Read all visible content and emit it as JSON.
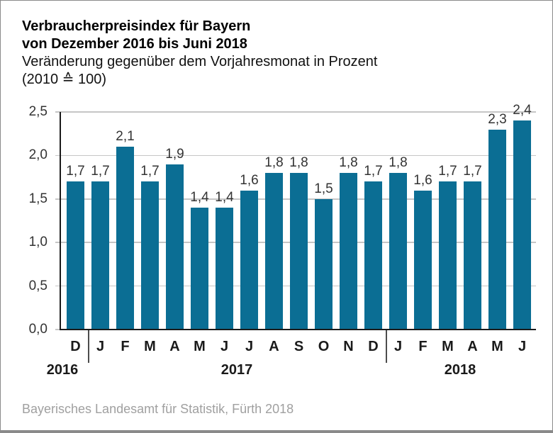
{
  "header": {
    "title_line1": "Verbraucherpreisindex für Bayern",
    "title_line2": "von Dezember 2016 bis Juni 2018",
    "subtitle_line1": "Veränderung gegenüber dem Vorjahresmonat in Prozent",
    "subtitle_line2": "(2010 ≙ 100)"
  },
  "chart_data": {
    "type": "bar",
    "title": "Verbraucherpreisindex für Bayern von Dezember 2016 bis Juni 2018",
    "subtitle": "Veränderung gegenüber dem Vorjahresmonat in Prozent (2010 ≙ 100)",
    "categories": [
      "D",
      "J",
      "F",
      "M",
      "A",
      "M",
      "J",
      "J",
      "A",
      "S",
      "O",
      "N",
      "D",
      "J",
      "F",
      "M",
      "A",
      "M",
      "J"
    ],
    "values": [
      1.7,
      1.7,
      2.1,
      1.7,
      1.9,
      1.4,
      1.4,
      1.6,
      1.8,
      1.8,
      1.5,
      1.8,
      1.7,
      1.8,
      1.6,
      1.7,
      1.7,
      2.3,
      2.4
    ],
    "value_labels": [
      "1,7",
      "1,7",
      "2,1",
      "1,7",
      "1,9",
      "1,4",
      "1,4",
      "1,6",
      "1,8",
      "1,8",
      "1,5",
      "1,8",
      "1,7",
      "1,8",
      "1,6",
      "1,7",
      "1,7",
      "2,3",
      "2,4"
    ],
    "years": [
      {
        "label": "2016",
        "from": 0,
        "to": 0
      },
      {
        "label": "2017",
        "from": 1,
        "to": 12
      },
      {
        "label": "2018",
        "from": 13,
        "to": 18
      }
    ],
    "y_ticks": [
      "0,0",
      "0,5",
      "1,0",
      "1,5",
      "2,0",
      "2,5"
    ],
    "y_tick_values": [
      0,
      0.5,
      1.0,
      1.5,
      2.0,
      2.5
    ],
    "ylim": [
      0,
      2.5
    ],
    "grid": true,
    "bar_color": "#0b6e94",
    "gridline_color": "#c6c6c6",
    "axis_color": "#1a1a1a"
  },
  "footer": {
    "source": "Bayerisches Landesamt für Statistik, Fürth 2018"
  }
}
